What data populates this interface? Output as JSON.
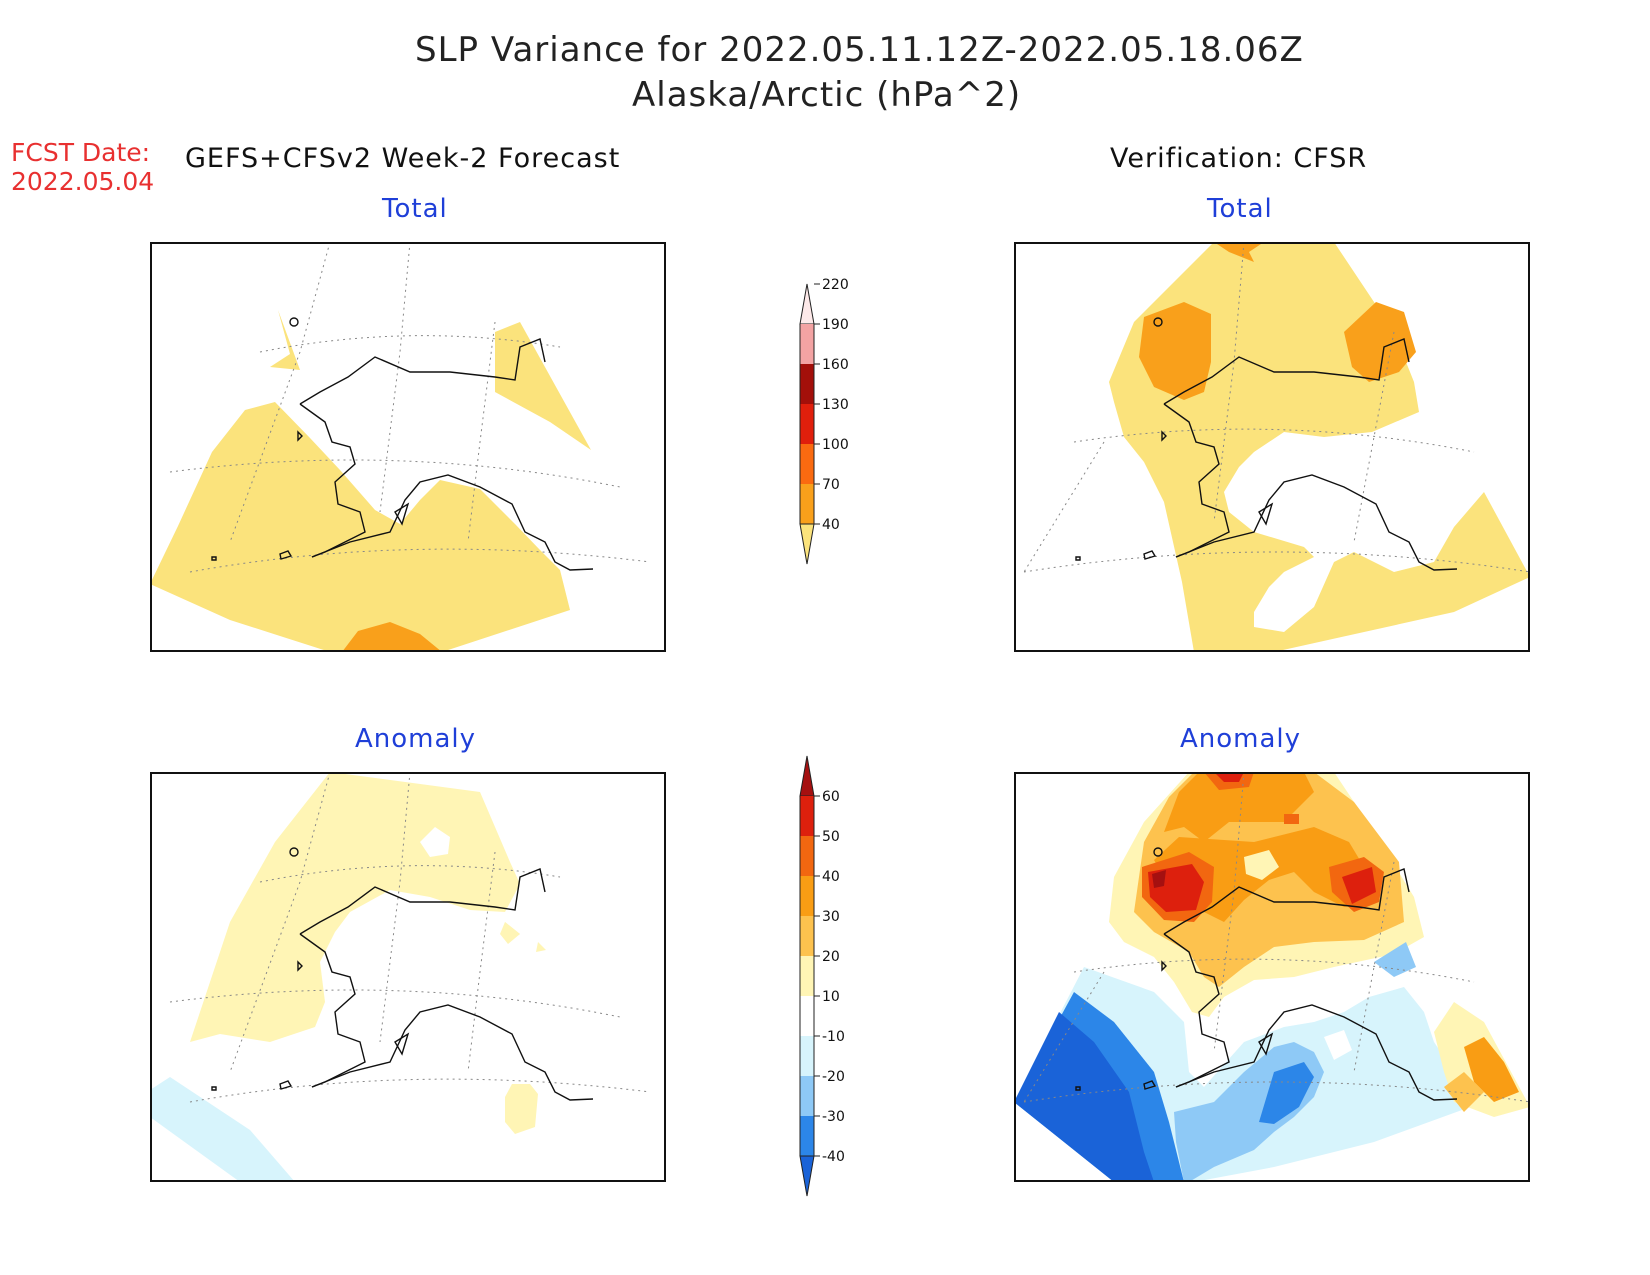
{
  "header": {
    "title_line1": "SLP Variance for 2022.05.11.12Z-2022.05.18.06Z",
    "title_line2": "Alaska/Arctic (hPa^2)",
    "fcst_label": "FCST Date:",
    "fcst_date": "2022.05.04",
    "left_heading": "GEFS+CFSv2 Week-2 Forecast",
    "right_heading": "Verification: CFSR"
  },
  "panels": [
    {
      "title": "Total"
    },
    {
      "title": "Total"
    },
    {
      "title": "Anomaly"
    },
    {
      "title": "Anomaly"
    }
  ],
  "colorbars": {
    "total": {
      "ticks": [
        "40",
        "70",
        "100",
        "130",
        "160",
        "190",
        "220"
      ],
      "colors": [
        "#fbe37c",
        "#f9a01b",
        "#fa6a10",
        "#e01f0c",
        "#a30f0a",
        "#f3a3a3",
        "#fde9e9"
      ]
    },
    "anomaly": {
      "ticks": [
        "-40",
        "-30",
        "-20",
        "-10",
        "10",
        "20",
        "30",
        "40",
        "50",
        "60"
      ],
      "colors": [
        "#1a63d8",
        "#2c86e8",
        "#8ec9f6",
        "#d7f4fc",
        "#ffffff",
        "#fff5b5",
        "#fdc24e",
        "#f99d14",
        "#f26710",
        "#dd200d",
        "#a51010"
      ]
    }
  }
}
